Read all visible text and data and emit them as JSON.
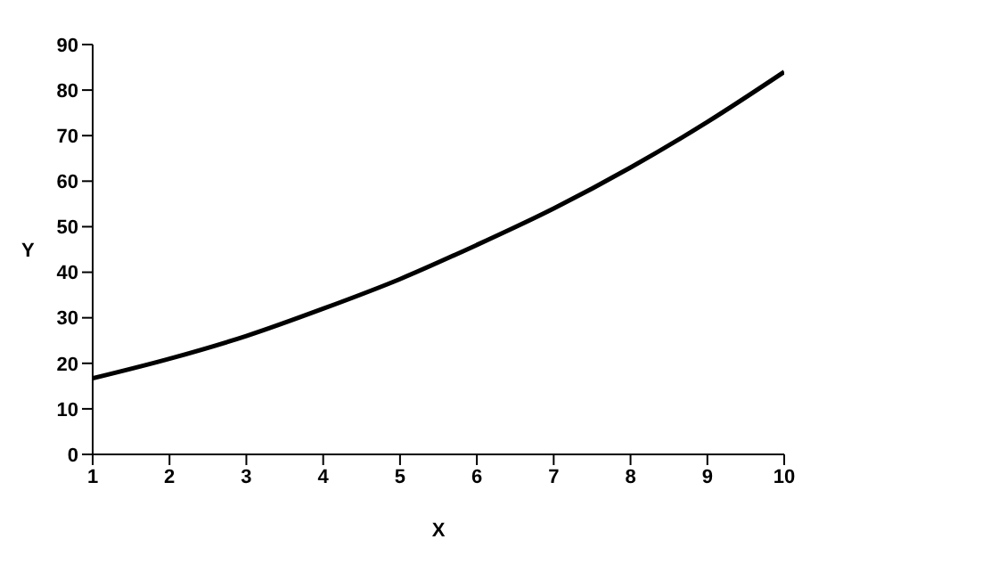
{
  "chart_data": {
    "type": "line",
    "xlabel": "X",
    "ylabel": "Y",
    "x": [
      1,
      2,
      3,
      4,
      5,
      6,
      7,
      8,
      9,
      10
    ],
    "series": [
      {
        "color": "#000000",
        "values": [
          16.7,
          21,
          26,
          32,
          38.5,
          46,
          54,
          63,
          73,
          84
        ]
      }
    ],
    "xlim": [
      1,
      10
    ],
    "xticks": [
      1,
      2,
      3,
      4,
      5,
      6,
      7,
      8,
      9,
      10
    ],
    "ylim": [
      0,
      90
    ],
    "yticks": [
      0,
      10,
      20,
      30,
      40,
      50,
      60,
      70,
      80,
      90
    ],
    "grid": false,
    "legend": false,
    "marker": "none",
    "line_style": "solid"
  }
}
